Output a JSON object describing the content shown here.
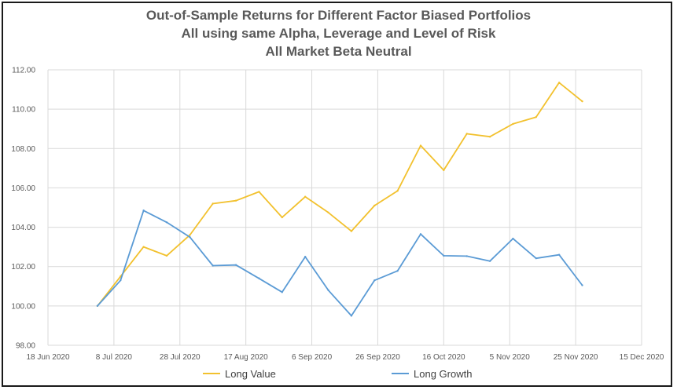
{
  "chart_data": {
    "type": "line",
    "title_lines": [
      "Out-of-Sample Returns for Different Factor Biased Portfolios",
      "All using same Alpha, Leverage and Level of Risk",
      "All Market Beta Neutral"
    ],
    "xlabel": "",
    "ylabel": "",
    "x_range": [
      "2020-06-18",
      "2020-12-15"
    ],
    "x_tick_dates": [
      "2020-06-18",
      "2020-07-08",
      "2020-07-28",
      "2020-08-17",
      "2020-09-06",
      "2020-09-26",
      "2020-10-16",
      "2020-11-05",
      "2020-11-25",
      "2020-12-15"
    ],
    "x_tick_labels": [
      "18 Jun 2020",
      "8 Jul 2020",
      "28 Jul 2020",
      "17 Aug 2020",
      "6 Sep 2020",
      "26 Sep 2020",
      "16 Oct 2020",
      "5 Nov 2020",
      "25 Nov 2020",
      "15 Dec 2020"
    ],
    "ylim": [
      98,
      112
    ],
    "y_ticks": [
      98,
      100,
      102,
      104,
      106,
      108,
      110,
      112
    ],
    "y_tick_labels": [
      "98.00",
      "100.00",
      "102.00",
      "104.00",
      "106.00",
      "108.00",
      "110.00",
      "112.00"
    ],
    "grid": "vertical and horizontal",
    "legend_position": "bottom",
    "x": [
      "2020-07-03",
      "2020-07-10",
      "2020-07-17",
      "2020-07-24",
      "2020-07-31",
      "2020-08-07",
      "2020-08-14",
      "2020-08-21",
      "2020-08-28",
      "2020-09-04",
      "2020-09-11",
      "2020-09-18",
      "2020-09-25",
      "2020-10-02",
      "2020-10-09",
      "2020-10-16",
      "2020-10-23",
      "2020-10-30",
      "2020-11-06",
      "2020-11-13",
      "2020-11-20",
      "2020-11-27"
    ],
    "series": [
      {
        "name": "Long Value",
        "color": "#F2C12E",
        "values": [
          100.0,
          101.5,
          103.0,
          102.55,
          103.6,
          105.2,
          105.35,
          105.8,
          104.5,
          105.55,
          104.75,
          103.8,
          105.1,
          105.85,
          108.15,
          106.9,
          108.75,
          108.6,
          109.25,
          109.6,
          111.35,
          110.4
        ]
      },
      {
        "name": "Long Growth",
        "color": "#5B9BD5",
        "values": [
          100.0,
          101.3,
          104.85,
          104.25,
          103.5,
          102.05,
          102.08,
          101.4,
          100.7,
          102.5,
          100.8,
          99.5,
          101.3,
          101.78,
          103.65,
          102.55,
          102.53,
          102.28,
          103.42,
          102.42,
          102.6,
          101.05
        ]
      }
    ]
  }
}
